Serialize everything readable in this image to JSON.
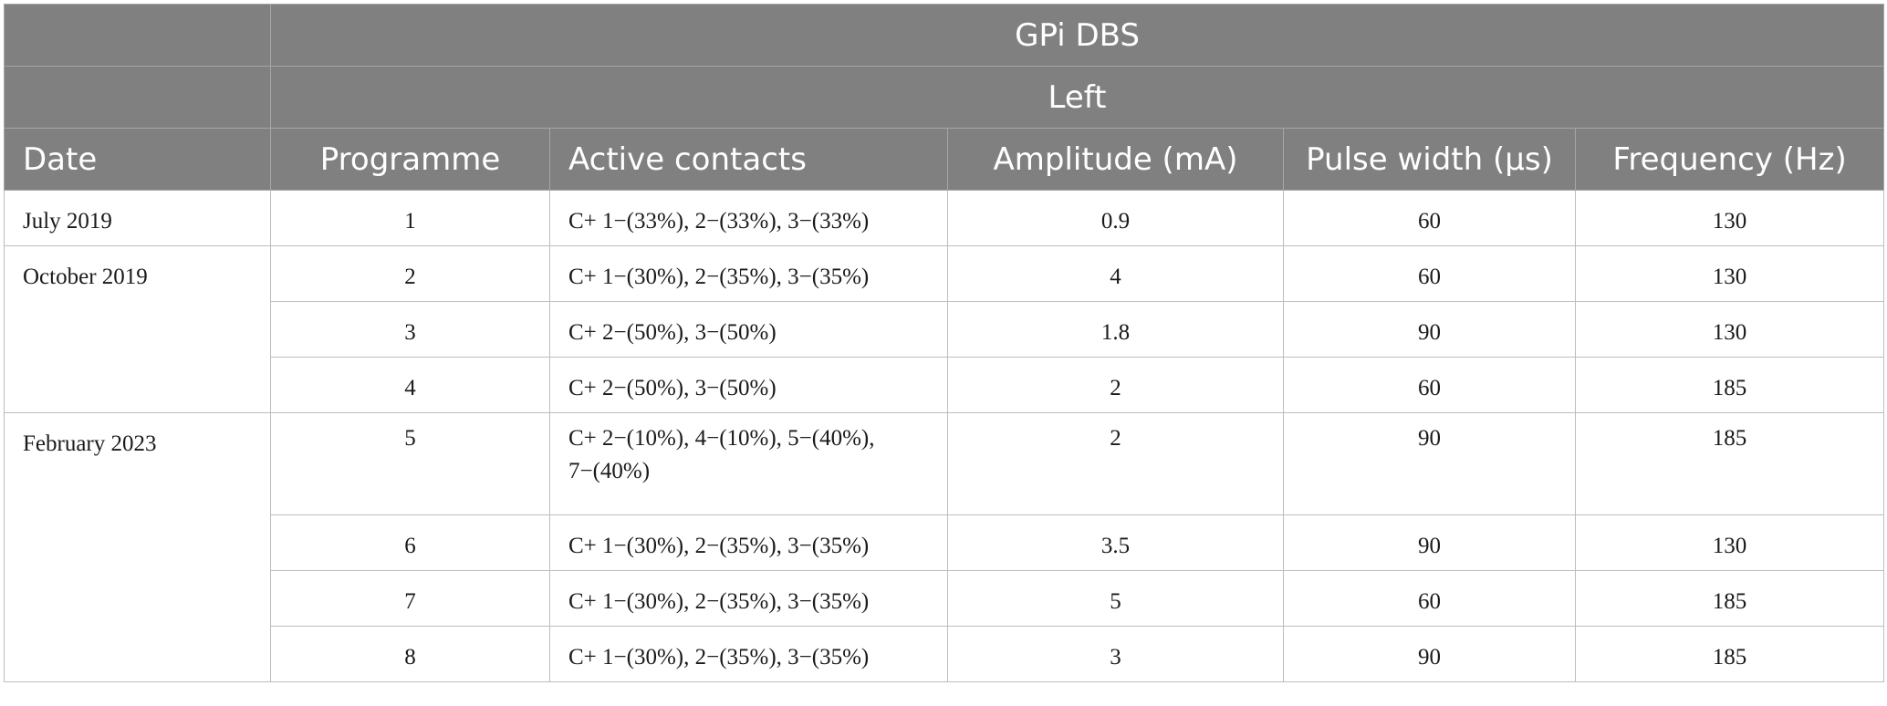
{
  "table": {
    "group_title": "GPi DBS",
    "subgroup_title": "Left",
    "headers": [
      "Date",
      "Programme",
      "Active contacts",
      "Amplitude (mA)",
      "Pulse width (µs)",
      "Frequency (Hz)"
    ],
    "dates": [
      "July 2019",
      "October 2019",
      "February 2023"
    ],
    "rows": [
      {
        "programme": "1",
        "contacts": "C+ 1−(33%), 2−(33%), 3−(33%)",
        "amplitude": "0.9",
        "pulse_width": "60",
        "frequency": "130"
      },
      {
        "programme": "2",
        "contacts": "C+ 1−(30%), 2−(35%), 3−(35%)",
        "amplitude": "4",
        "pulse_width": "60",
        "frequency": "130"
      },
      {
        "programme": "3",
        "contacts": "C+ 2−(50%), 3−(50%)",
        "amplitude": "1.8",
        "pulse_width": "90",
        "frequency": "130"
      },
      {
        "programme": "4",
        "contacts": "C+ 2−(50%), 3−(50%)",
        "amplitude": "2",
        "pulse_width": "60",
        "frequency": "185"
      },
      {
        "programme": "5",
        "contacts": "C+ 2−(10%), 4−(10%), 5−(40%), 7−(40%)",
        "amplitude": "2",
        "pulse_width": "90",
        "frequency": "185"
      },
      {
        "programme": "6",
        "contacts": "C+ 1−(30%), 2−(35%), 3−(35%)",
        "amplitude": "3.5",
        "pulse_width": "90",
        "frequency": "130"
      },
      {
        "programme": "7",
        "contacts": "C+ 1−(30%), 2−(35%), 3−(35%)",
        "amplitude": "5",
        "pulse_width": "60",
        "frequency": "185"
      },
      {
        "programme": "8",
        "contacts": "C+ 1−(30%), 2−(35%), 3−(35%)",
        "amplitude": "3",
        "pulse_width": "90",
        "frequency": "185"
      }
    ]
  }
}
